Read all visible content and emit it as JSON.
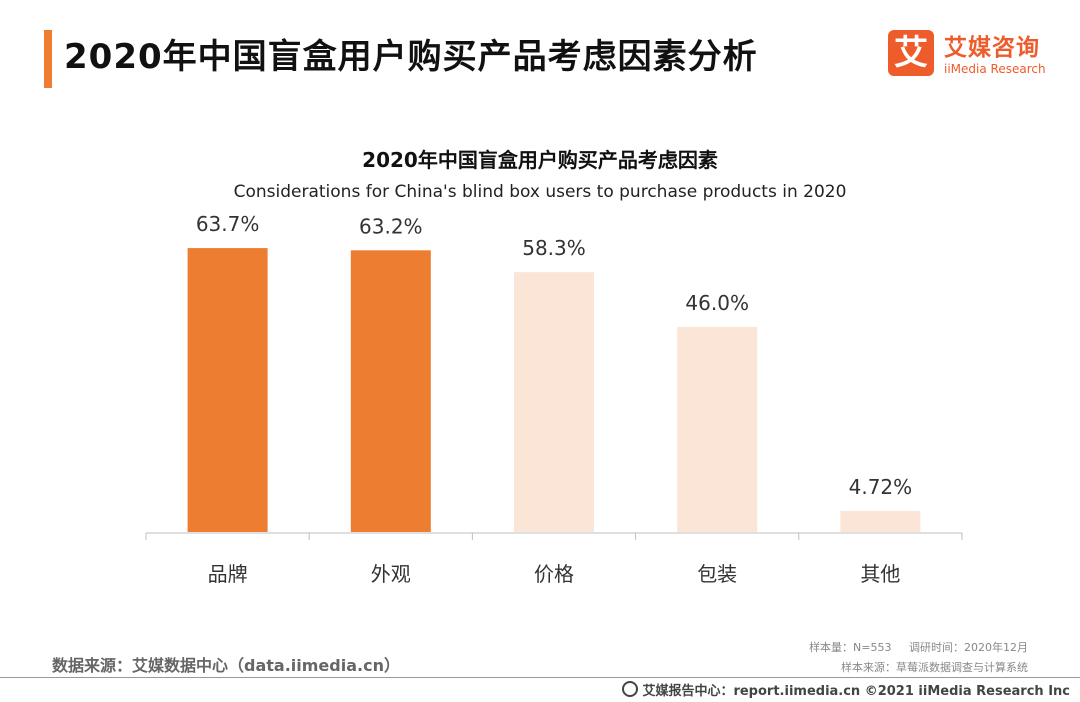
{
  "header": {
    "title": "2020年中国盲盒用户购买产品考虑因素分析",
    "logo_mark": "艾",
    "logo_cn": "艾媒咨询",
    "logo_en": "iiMedia Research"
  },
  "chart_data": {
    "type": "bar",
    "title": "2020年中国盲盒用户购买产品考虑因素",
    "subtitle": "Considerations for China's blind box users to purchase products in 2020",
    "categories": [
      "品牌",
      "外观",
      "价格",
      "包装",
      "其他"
    ],
    "values": [
      63.7,
      63.2,
      58.3,
      46.0,
      4.72
    ],
    "labels": [
      "63.7%",
      "63.2%",
      "58.3%",
      "46.0%",
      "4.72%"
    ],
    "unit": "%",
    "ylim": [
      0,
      70
    ],
    "grid": false,
    "legend": "none",
    "bar_colors": [
      "#ed7d31",
      "#ed7d31",
      "#fbe5d6",
      "#fbe5d6",
      "#fbe5d6"
    ]
  },
  "footer": {
    "source": "数据来源：艾媒数据中心（data.iimedia.cn）",
    "sample_size": "样本量：N=553",
    "survey_time": "调研时间：2020年12月",
    "sample_source": "样本来源：草莓派数据调查与计算系统",
    "copyright": "艾媒报告中心：report.iimedia.cn  ©2021  iiMedia Research  Inc"
  }
}
